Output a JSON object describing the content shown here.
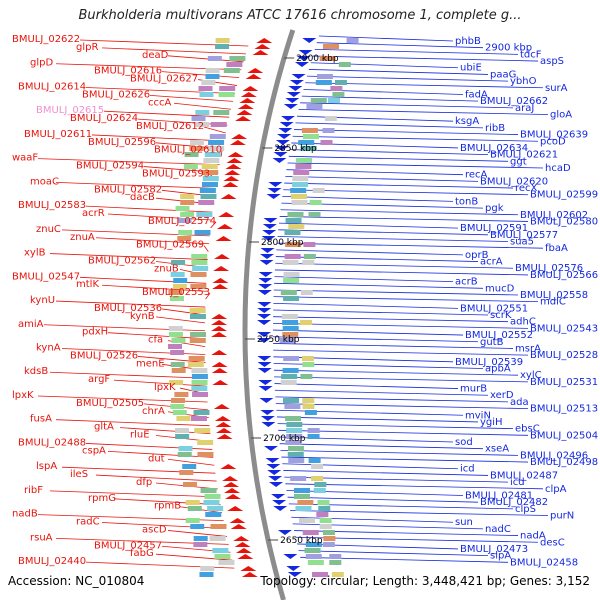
{
  "title": "Burkholderia multivorans ATCC 17616 chromosome 1, complete g...",
  "accession": "Accession: NC_010804",
  "topology": "Topology: circular; Length: 3,448,421 bp; Genes: 3,152",
  "colors": {
    "forward": "#e8140c",
    "reverse": "#1428e0",
    "backbone": "#8c8c8c",
    "tick": "#1f8a1f"
  },
  "ticks": [
    "2900 kbp",
    "2850 kbp",
    "2800 kbp",
    "2750 kbp",
    "2700 kbp",
    "2650 kbp"
  ],
  "left_labels": [
    "BMULJ_02622",
    "glpR",
    "deaD",
    "glpD",
    "BMULJ_02616",
    "BMULJ_02627",
    "BMULJ_02614",
    "BMULJ_02626",
    "cccA",
    "BMULJ_02615",
    "BMULJ_02624",
    "BMULJ_02612",
    "BMULJ_02611",
    "BMULJ_02596",
    "BMULJ_02610",
    "waaF",
    "BMULJ_02594",
    "BMULJ_02593",
    "moaC",
    "BMULJ_02582",
    "dacB",
    "BMULJ_02583",
    "acrR",
    "BMULJ_02574",
    "znuC",
    "znuA",
    "BMULJ_02569",
    "xylB",
    "BMULJ_02562",
    "znuB",
    "BMULJ_02547",
    "mtlK",
    "BMULJ_02553",
    "kynU",
    "BMULJ_02536",
    "kynB",
    "amiA",
    "pdxH",
    "cfa",
    "kynA",
    "BMULJ_02526",
    "menE",
    "kdsB",
    "argF",
    "lpxK",
    "lpxK",
    "BMULJ_02505",
    "chrA",
    "fusA",
    "gltA",
    "rluE",
    "BMULJ_02488",
    "cspA",
    "dut",
    "lspA",
    "ileS",
    "dfp",
    "ribF",
    "rpmG",
    "rpmB",
    "nadB",
    "radC",
    "ascD",
    "rsuA",
    "BMULJ_02457",
    "fabG",
    "BMULJ_02440"
  ],
  "right_labels": [
    "phbB",
    "2900 kbp",
    "tdcF",
    "aspS",
    "ubiE",
    "paaG",
    "ybhO",
    "surA",
    "fadA",
    "BMULJ_02662",
    "araJ",
    "gloA",
    "ksgA",
    "ribB",
    "BMULJ_02639",
    "pcoD",
    "BMULJ_02634",
    "BMULJ_02621",
    "ggt",
    "hcaD",
    "recA",
    "BMULJ_02620",
    "recX",
    "BMULJ_02599",
    "tonB",
    "pgk",
    "BMULJ_02602",
    "BMULJ_02580",
    "BMULJ_02591",
    "BMULJ_02577",
    "sua5",
    "fbaA",
    "oprB",
    "acrA",
    "BMULJ_02576",
    "BMULJ_02566",
    "acrB",
    "mucD",
    "BMULJ_02558",
    "mdlC",
    "BMULJ_02551",
    "scrK",
    "adhC",
    "BMULJ_02543",
    "BMULJ_02552",
    "gutB",
    "msrA",
    "BMULJ_02528",
    "BMULJ_02539",
    "apbA",
    "xylC",
    "BMULJ_02531",
    "murB",
    "xerD",
    "ada",
    "BMULJ_02513",
    "mviN",
    "ygiH",
    "ebsC",
    "BMULJ_02504",
    "sod",
    "xseA",
    "BMULJ_02496",
    "BMULJ_02498",
    "icd",
    "BMULJ_02487",
    "icd",
    "clpA",
    "BMULJ_02481",
    "BMULJ_02482",
    "clpS",
    "purN",
    "sun",
    "nadC",
    "nadA",
    "desC",
    "BMULJ_02473",
    "slpA",
    "BMULJ_02458"
  ]
}
